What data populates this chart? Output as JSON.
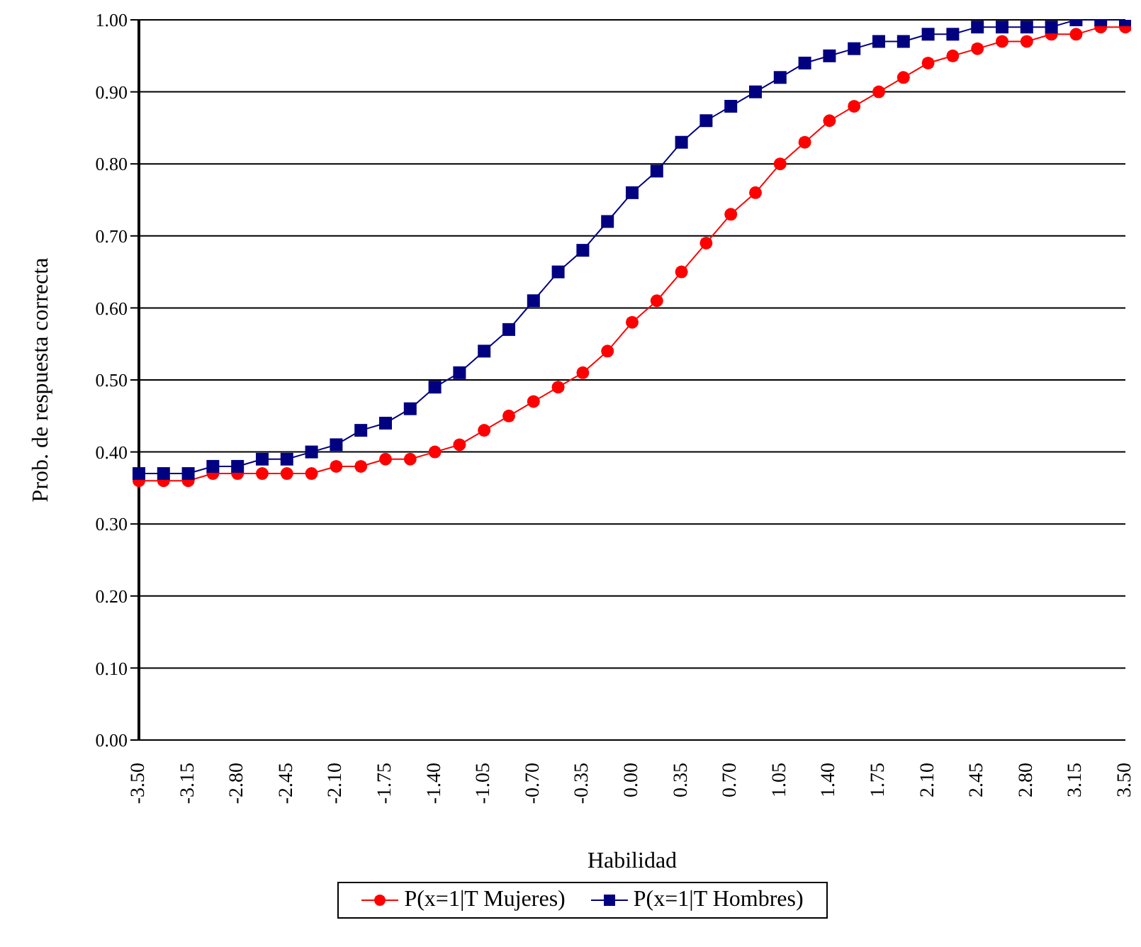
{
  "chart_data": {
    "type": "line",
    "xlabel": "Habilidad",
    "ylabel": "Prob. de respuesta correcta",
    "categories": [
      "-3.50",
      null,
      "-3.15",
      null,
      "-2.80",
      null,
      "-2.45",
      null,
      "-2.10",
      null,
      "-1.75",
      null,
      "-1.40",
      null,
      "-1.05",
      null,
      "-0.70",
      null,
      "-0.35",
      null,
      "0.00",
      null,
      "0.35",
      null,
      "0.70",
      null,
      "1.05",
      null,
      "1.40",
      null,
      "1.75",
      null,
      "2.10",
      null,
      "2.45",
      null,
      "2.80",
      null,
      "3.15",
      null,
      "3.50"
    ],
    "series": [
      {
        "name": "P(x=1|T Mujeres)",
        "color": "#ff0000",
        "marker": "circle",
        "values": [
          0.36,
          0.36,
          0.36,
          0.37,
          0.37,
          0.37,
          0.37,
          0.37,
          0.38,
          0.38,
          0.39,
          0.39,
          0.4,
          0.41,
          0.43,
          0.45,
          0.47,
          0.49,
          0.51,
          0.54,
          0.58,
          0.61,
          0.65,
          0.69,
          0.73,
          0.76,
          0.8,
          0.83,
          0.86,
          0.88,
          0.9,
          0.92,
          0.94,
          0.95,
          0.96,
          0.97,
          0.97,
          0.98,
          0.98,
          0.99,
          0.99
        ]
      },
      {
        "name": "P(x=1|T Hombres)",
        "color": "#000080",
        "marker": "square",
        "values": [
          0.37,
          0.37,
          0.37,
          0.38,
          0.38,
          0.39,
          0.39,
          0.4,
          0.41,
          0.43,
          0.44,
          0.46,
          0.49,
          0.51,
          0.54,
          0.57,
          0.61,
          0.65,
          0.68,
          0.72,
          0.76,
          0.79,
          0.83,
          0.86,
          0.88,
          0.9,
          0.92,
          0.94,
          0.95,
          0.96,
          0.97,
          0.97,
          0.98,
          0.98,
          0.99,
          0.99,
          0.99,
          0.99,
          1.0,
          1.0,
          1.0
        ]
      }
    ],
    "ylim": [
      0,
      1
    ],
    "yticks": [
      {
        "value": 0,
        "label": "0.00"
      },
      {
        "value": 0.1,
        "label": "0.10"
      },
      {
        "value": 0.2,
        "label": "0.20"
      },
      {
        "value": 0.3,
        "label": "0.30"
      },
      {
        "value": 0.4,
        "label": "0.40"
      },
      {
        "value": 0.5,
        "label": "0.50"
      },
      {
        "value": 0.6,
        "label": "0.60"
      },
      {
        "value": 0.7,
        "label": "0.70"
      },
      {
        "value": 0.8,
        "label": "0.80"
      },
      {
        "value": 0.9,
        "label": "0.90"
      },
      {
        "value": 1,
        "label": "1.00"
      }
    ],
    "grid": "y",
    "legend": "bottom"
  }
}
